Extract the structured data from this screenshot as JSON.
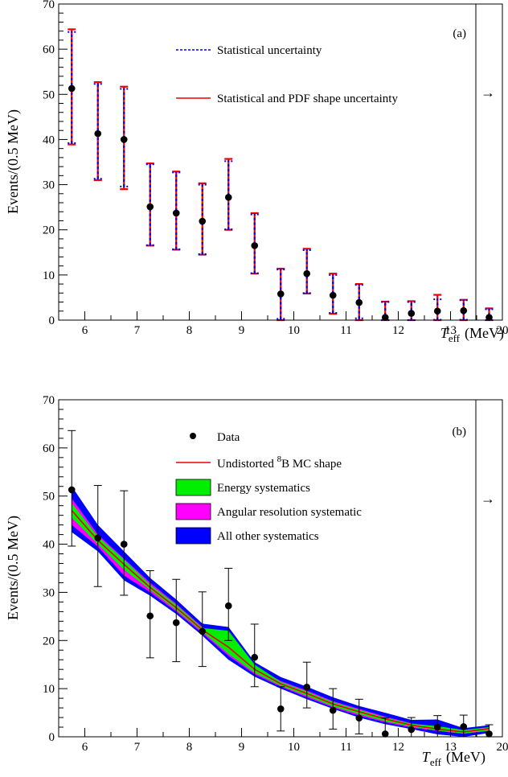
{
  "chart_data": [
    {
      "type": "scatter",
      "panel_label": "(a)",
      "ylabel": "Events/(0.5 MeV)",
      "xlabel_main": "T",
      "xlabel_sub": "eff",
      "xlabel_unit": "(MeV)",
      "ylim": [
        0,
        70
      ],
      "yticks": [
        0,
        10,
        20,
        30,
        40,
        50,
        60,
        70
      ],
      "xtick_labels": [
        "6",
        "7",
        "8",
        "9",
        "10",
        "11",
        "12",
        "13",
        "20"
      ],
      "arrow_symbol": "→",
      "grid": false,
      "legend_position": "top-right",
      "legend": [
        {
          "label": "Statistical uncertainty",
          "style": "dashed",
          "color": "#0000ee"
        },
        {
          "label": "Statistical and PDF shape uncertainty",
          "style": "solid",
          "color": "#ee0000"
        }
      ],
      "x": [
        5.75,
        6.25,
        6.75,
        7.25,
        7.75,
        8.25,
        8.75,
        9.25,
        9.75,
        10.25,
        10.75,
        11.25,
        11.75,
        12.25,
        12.75,
        13.25,
        13.75
      ],
      "y": [
        51.3,
        41.3,
        40.0,
        25.1,
        23.7,
        21.9,
        27.2,
        16.5,
        5.8,
        10.3,
        5.5,
        3.9,
        0.6,
        1.5,
        2.0,
        2.1,
        0.6
      ],
      "stat_low": [
        39.2,
        31.3,
        29.6,
        16.6,
        15.7,
        14.6,
        20.1,
        10.4,
        0.3,
        6.0,
        1.6,
        0.4,
        0.0,
        0.0,
        0.1,
        0.1,
        0.0
      ],
      "stat_high": [
        63.8,
        52.3,
        51.2,
        34.5,
        32.7,
        30.0,
        35.2,
        23.4,
        11.2,
        15.5,
        10.0,
        7.8,
        4.0,
        4.0,
        4.6,
        4.4,
        2.4
      ],
      "pdf_low": [
        38.9,
        31.0,
        29.0,
        16.5,
        15.6,
        14.5,
        20.0,
        10.3,
        0.0,
        5.9,
        1.4,
        0.0,
        0.0,
        0.0,
        0.0,
        0.0,
        0.0
      ],
      "pdf_high": [
        64.4,
        52.7,
        51.7,
        34.7,
        32.9,
        30.3,
        35.7,
        23.7,
        11.4,
        15.8,
        10.3,
        8.0,
        4.1,
        4.2,
        5.6,
        4.5,
        2.6
      ]
    },
    {
      "type": "scatter",
      "panel_label": "(b)",
      "ylabel": "Events/(0.5 MeV)",
      "xlabel_main": "T",
      "xlabel_sub": "eff",
      "xlabel_unit": "(MeV)",
      "ylim": [
        0,
        70
      ],
      "yticks": [
        0,
        10,
        20,
        30,
        40,
        50,
        60,
        70
      ],
      "xtick_labels": [
        "6",
        "7",
        "8",
        "9",
        "10",
        "11",
        "12",
        "13",
        "20"
      ],
      "arrow_symbol": "→",
      "grid": false,
      "legend_position": "top-right",
      "legend": [
        {
          "label": "Data",
          "kind": "marker",
          "color": "#000000"
        },
        {
          "label_prefix": "Undistorted ",
          "label_sup": "8",
          "label_suffix": "B MC shape",
          "kind": "line",
          "color": "#ee0000"
        },
        {
          "label": "Energy systematics",
          "kind": "box",
          "color": "#00ee00"
        },
        {
          "label": "Angular resolution systematic",
          "kind": "box",
          "color": "#ff00ff"
        },
        {
          "label": "All other systematics",
          "kind": "box",
          "color": "#0000ff"
        }
      ],
      "data": {
        "x": [
          5.75,
          6.25,
          6.75,
          7.25,
          7.75,
          8.25,
          8.75,
          9.25,
          9.75,
          10.25,
          10.75,
          11.25,
          11.75,
          12.25,
          12.75,
          13.25,
          13.75
        ],
        "y": [
          51.3,
          41.3,
          40.0,
          25.1,
          23.7,
          21.9,
          27.2,
          16.5,
          5.8,
          10.3,
          5.5,
          3.9,
          0.6,
          1.5,
          2.0,
          2.1,
          0.6
        ],
        "err_low": [
          39.6,
          31.2,
          29.4,
          16.4,
          15.6,
          14.6,
          20.0,
          10.4,
          1.2,
          6.0,
          1.6,
          0.6,
          0.0,
          0.0,
          0.0,
          0.0,
          0.0
        ],
        "err_high": [
          63.6,
          52.2,
          51.1,
          34.5,
          32.7,
          30.1,
          35.0,
          23.4,
          10.4,
          15.5,
          10.0,
          7.8,
          3.9,
          4.0,
          4.4,
          4.5,
          2.5
        ]
      },
      "mc_shape": {
        "x": [
          5.75,
          6.25,
          6.75,
          7.25,
          7.75,
          8.25,
          8.75,
          9.25,
          9.75,
          10.25,
          10.75,
          11.25,
          11.75,
          12.25,
          12.75,
          13.25,
          13.75
        ],
        "y": [
          47.0,
          40.8,
          35.8,
          31.0,
          26.8,
          22.2,
          18.6,
          14.0,
          11.0,
          9.0,
          6.8,
          5.2,
          3.7,
          2.4,
          1.6,
          1.0,
          1.7
        ]
      },
      "bands": {
        "all_other": {
          "low": [
            42.5,
            38.5,
            32.5,
            29.3,
            25.5,
            21.0,
            16.0,
            12.5,
            10.0,
            7.8,
            5.8,
            4.0,
            2.6,
            1.6,
            0.5,
            0.0,
            0.8
          ],
          "high": [
            52.0,
            44.0,
            38.5,
            33.0,
            28.5,
            23.5,
            22.8,
            15.5,
            12.4,
            10.4,
            8.2,
            6.4,
            5.0,
            3.5,
            3.6,
            1.8,
            2.4
          ]
        },
        "angular": {
          "low": [
            44.0,
            39.5,
            33.5,
            30.0,
            26.0,
            21.5,
            16.8,
            13.0,
            10.4,
            8.2,
            6.1,
            4.4,
            3.0,
            1.9,
            1.2,
            0.6,
            1.2
          ],
          "high": [
            49.5,
            42.0,
            37.0,
            32.0,
            27.6,
            22.8,
            19.4,
            14.6,
            11.6,
            9.6,
            7.4,
            5.8,
            4.2,
            2.8,
            2.0,
            1.3,
            2.0
          ]
        },
        "energy": {
          "low": [
            45.5,
            40.0,
            34.7,
            30.5,
            26.3,
            21.8,
            17.2,
            13.3,
            10.6,
            8.5,
            6.3,
            4.7,
            3.2,
            2.1,
            1.3,
            0.7,
            1.3
          ],
          "high": [
            48.5,
            41.6,
            36.8,
            31.6,
            27.4,
            22.6,
            22.0,
            15.0,
            11.4,
            9.4,
            7.2,
            5.6,
            4.0,
            2.7,
            2.2,
            1.4,
            2.0
          ]
        }
      }
    }
  ]
}
